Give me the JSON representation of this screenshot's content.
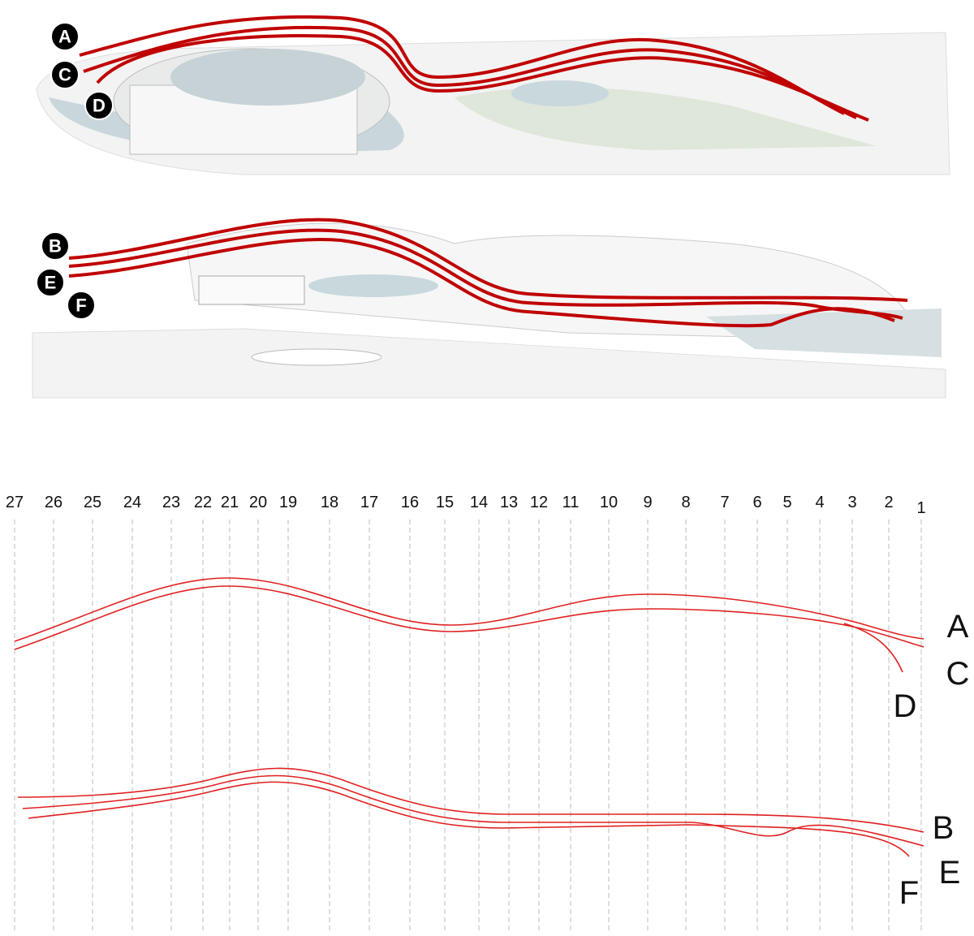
{
  "views": [
    {
      "labels": [
        "A",
        "C",
        "D"
      ]
    },
    {
      "labels": [
        "B",
        "E",
        "F"
      ]
    }
  ],
  "sections": {
    "labels": [
      "27",
      "26",
      "25",
      "24",
      "23",
      "22",
      "21",
      "20",
      "19",
      "18",
      "17",
      "16",
      "15",
      "14",
      "13",
      "12",
      "11",
      "10",
      "9",
      "8",
      "7",
      "6",
      "5",
      "4",
      "3",
      "2",
      "1"
    ]
  },
  "profiles": [
    {
      "labels": [
        "A",
        "C",
        "D"
      ]
    },
    {
      "labels": [
        "B",
        "E",
        "F"
      ]
    }
  ]
}
